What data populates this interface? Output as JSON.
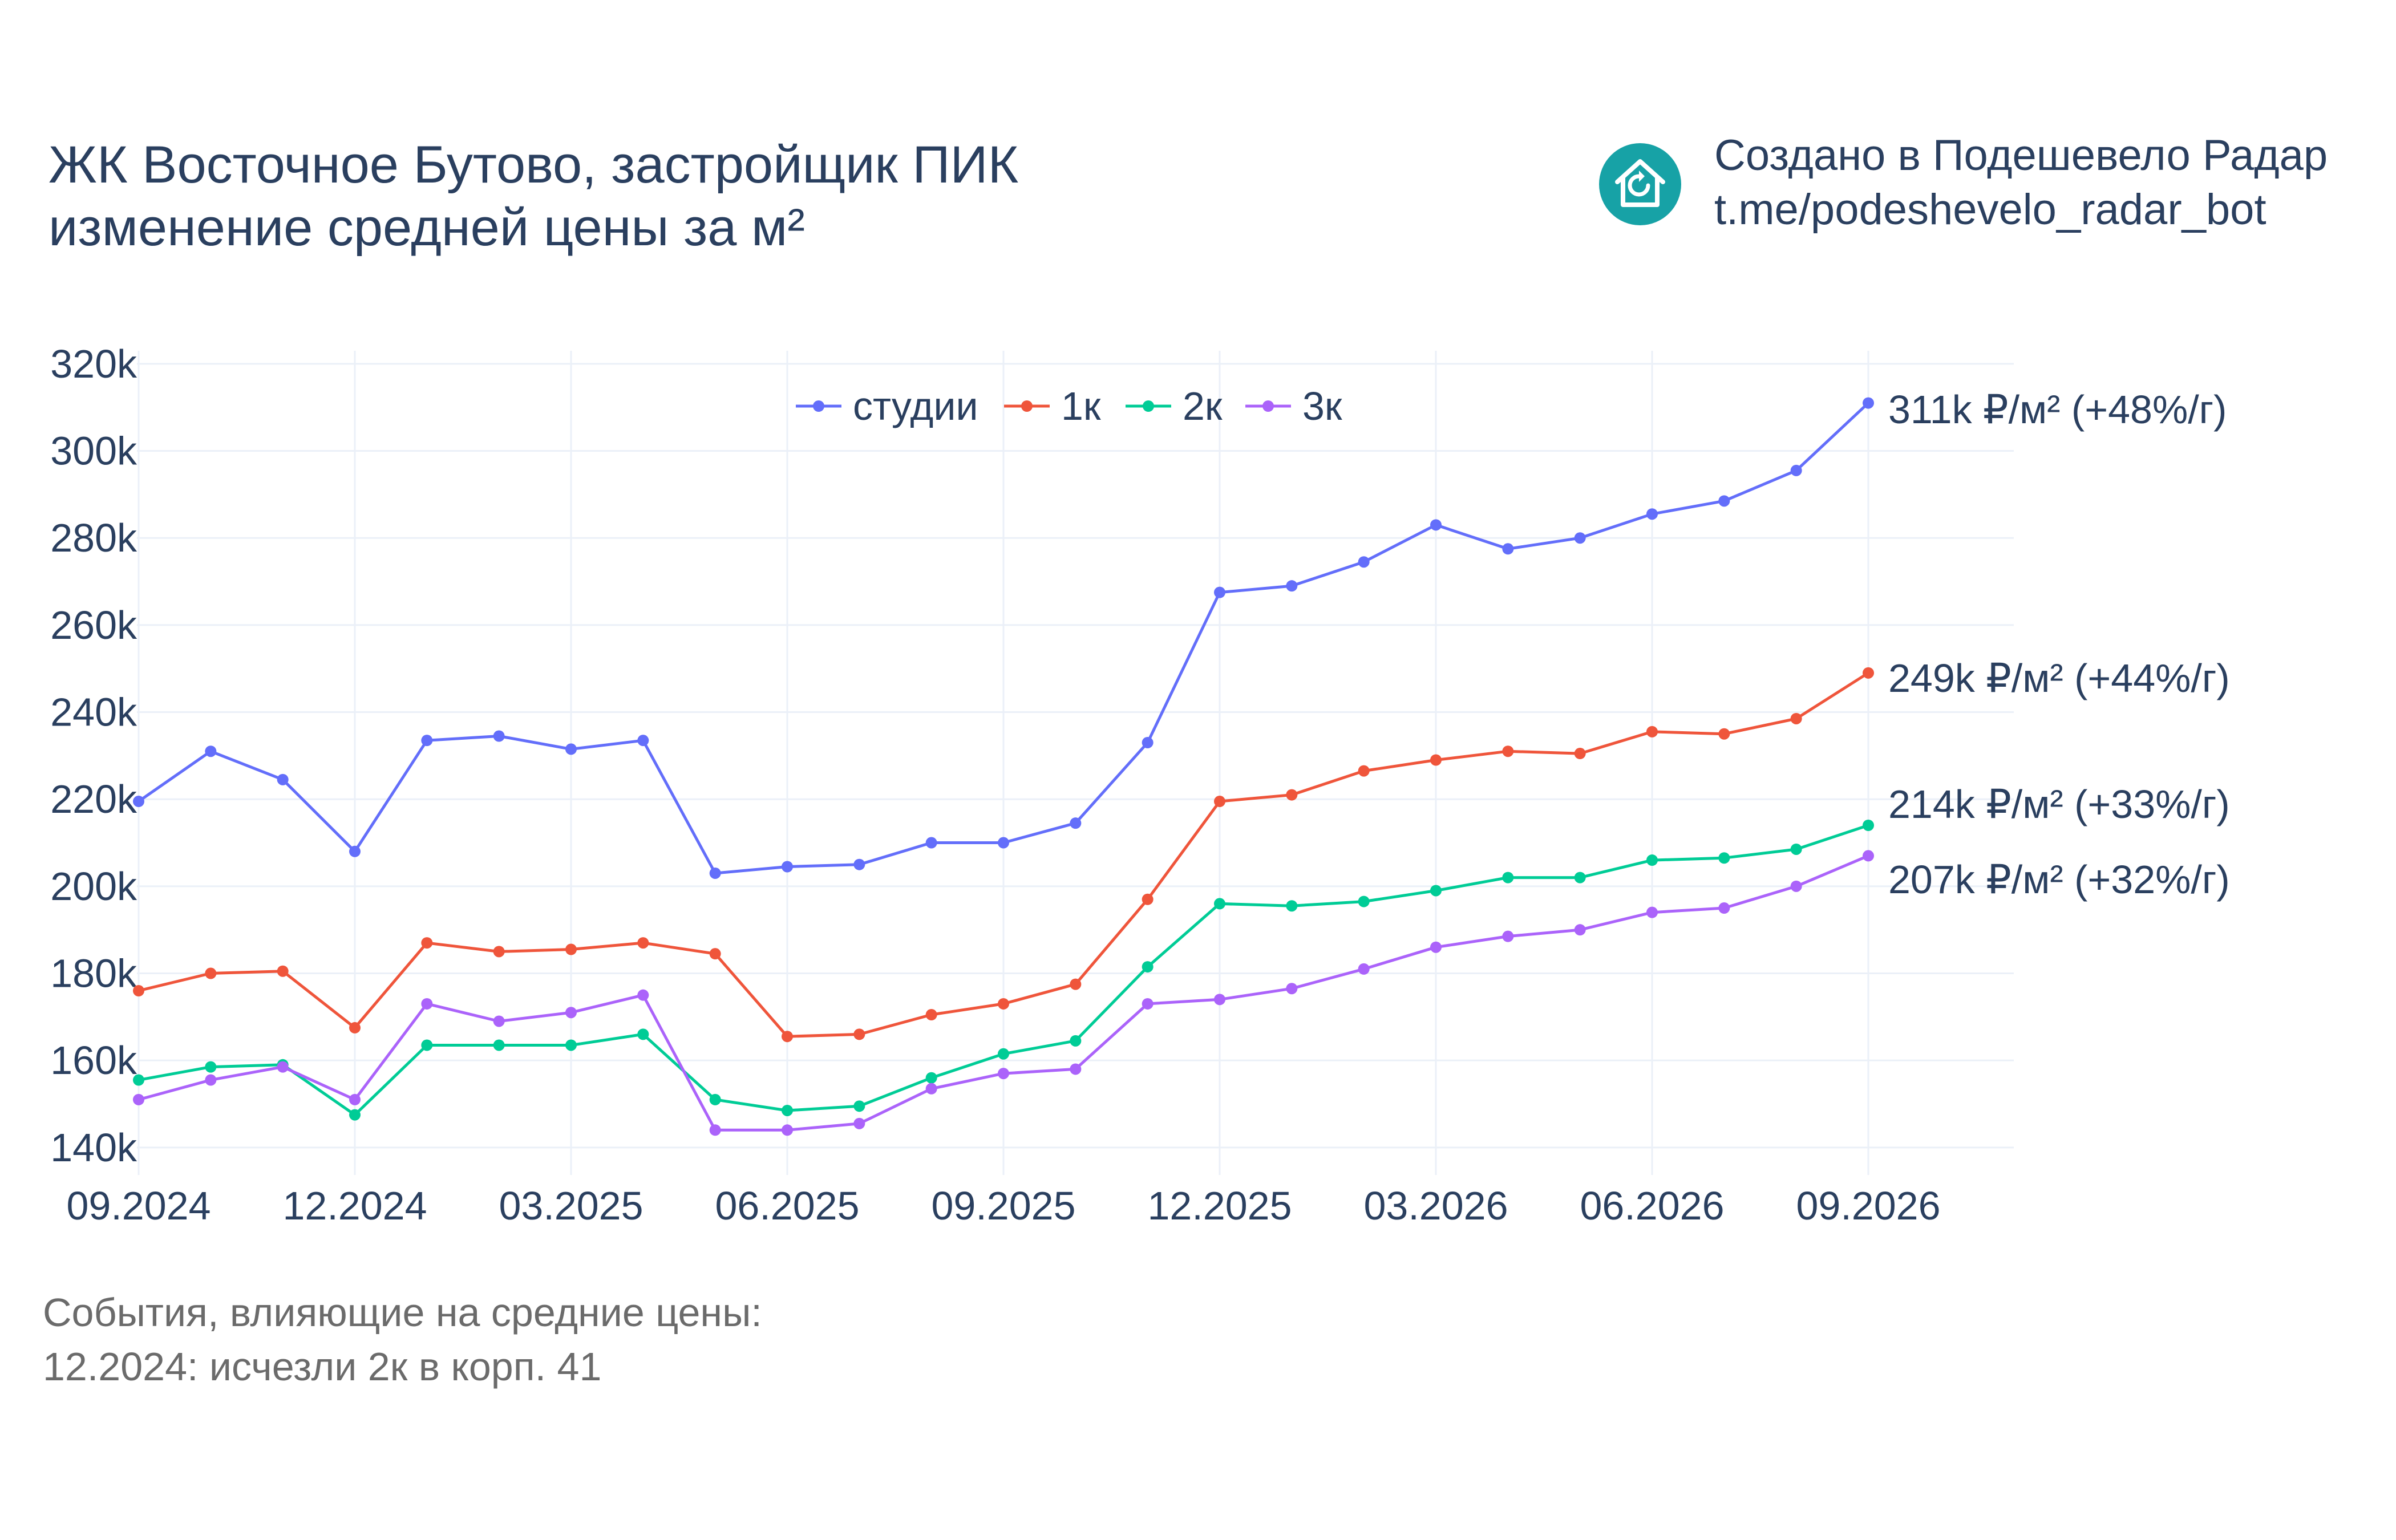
{
  "header": {
    "title_lines": [
      "ЖК Восточное Бутово, застройщик ПИК",
      "изменение средней цены за м²"
    ],
    "credit_lines": [
      "Создано в Подешевело Радар",
      "t.me/podeshevelo_radar_bot"
    ],
    "logo_icon": "house-refresh-icon",
    "logo_color": "#17a2a6"
  },
  "notes": {
    "lines": [
      "События, влияющие на средние цены:",
      "12.2024: исчезли 2к в корп. 41"
    ]
  },
  "chart_data": {
    "type": "line",
    "x": [
      "2024-09",
      "2024-10",
      "2024-11",
      "2024-12",
      "2025-01",
      "2025-02",
      "2025-03",
      "2025-04",
      "2025-05",
      "2025-06",
      "2025-07",
      "2025-08",
      "2025-09",
      "2025-10",
      "2025-11",
      "2025-12",
      "2026-01",
      "2026-02",
      "2026-03",
      "2026-04",
      "2026-05",
      "2026-06",
      "2026-07",
      "2026-08",
      "2026-09"
    ],
    "x_ticks": [
      {
        "x": "2024-09",
        "label": "09.2024"
      },
      {
        "x": "2024-12",
        "label": "12.2024"
      },
      {
        "x": "2025-03",
        "label": "03.2025"
      },
      {
        "x": "2025-06",
        "label": "06.2025"
      },
      {
        "x": "2025-09",
        "label": "09.2025"
      },
      {
        "x": "2025-12",
        "label": "12.2025"
      },
      {
        "x": "2026-03",
        "label": "03.2026"
      },
      {
        "x": "2026-06",
        "label": "06.2026"
      },
      {
        "x": "2026-09",
        "label": "09.2026"
      }
    ],
    "y_ticks": [
      {
        "value": 140000,
        "label": "140k"
      },
      {
        "value": 160000,
        "label": "160k"
      },
      {
        "value": 180000,
        "label": "180k"
      },
      {
        "value": 200000,
        "label": "200k"
      },
      {
        "value": 220000,
        "label": "220k"
      },
      {
        "value": 240000,
        "label": "240k"
      },
      {
        "value": 260000,
        "label": "260k"
      },
      {
        "value": 280000,
        "label": "280k"
      },
      {
        "value": 300000,
        "label": "300k"
      },
      {
        "value": 320000,
        "label": "320k"
      }
    ],
    "ylim": [
      135000,
      323000
    ],
    "grid": true,
    "legend_position": "top",
    "series": [
      {
        "name": "студии",
        "color": "#636efa",
        "values": [
          219500,
          231000,
          224500,
          208000,
          233500,
          234500,
          231500,
          233500,
          203000,
          204500,
          205000,
          210000,
          210000,
          214500,
          233000,
          267500,
          269000,
          274500,
          283000,
          277500,
          280000,
          285500,
          288500,
          295500,
          311000
        ],
        "end_label": "311k ₽/м² (+48%/г)"
      },
      {
        "name": "1к",
        "color": "#ef553b",
        "values": [
          176000,
          180000,
          180500,
          167500,
          187000,
          185000,
          185500,
          187000,
          184500,
          165500,
          166000,
          170500,
          173000,
          177500,
          197000,
          219500,
          221000,
          226500,
          229000,
          231000,
          230500,
          235500,
          235000,
          238500,
          249000
        ],
        "end_label": "249k ₽/м² (+44%/г)"
      },
      {
        "name": "2к",
        "color": "#00cc96",
        "values": [
          155500,
          158500,
          159000,
          147500,
          163500,
          163500,
          163500,
          166000,
          151000,
          148500,
          149500,
          156000,
          161500,
          164500,
          181500,
          196000,
          195500,
          196500,
          199000,
          202000,
          202000,
          206000,
          206500,
          208500,
          214000
        ],
        "end_label": "214k ₽/м² (+33%/г)"
      },
      {
        "name": "3к",
        "color": "#ab63fa",
        "values": [
          151000,
          155500,
          158500,
          151000,
          173000,
          169000,
          171000,
          175000,
          144000,
          144000,
          145500,
          153500,
          157000,
          158000,
          173000,
          174000,
          176500,
          181000,
          186000,
          188500,
          190000,
          194000,
          195000,
          200000,
          207000
        ],
        "end_label": "207k ₽/м² (+32%/г)"
      }
    ]
  }
}
